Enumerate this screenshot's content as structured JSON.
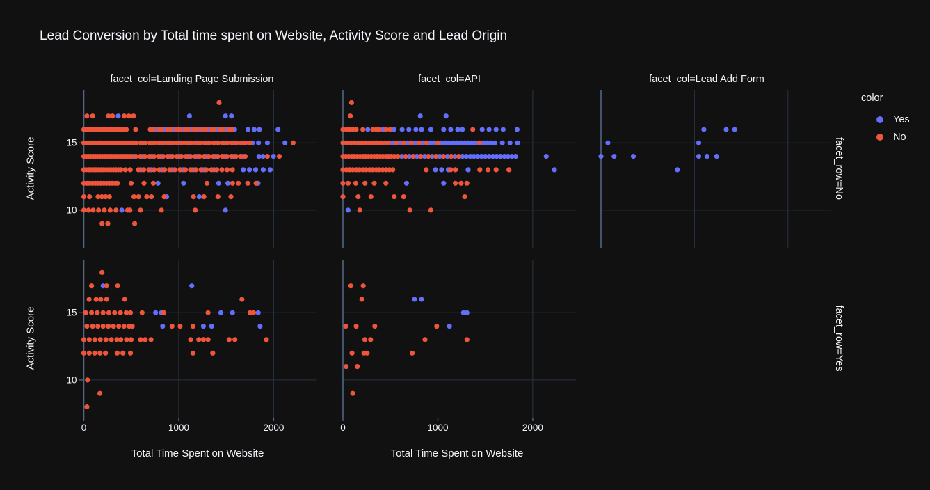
{
  "page": {
    "background": "#111111"
  },
  "title": "Lead Conversion by Total time spent on Website, Activity Score and Lead Origin",
  "legend": {
    "title": "color",
    "items": [
      {
        "label": "Yes",
        "color": "#636efa"
      },
      {
        "label": "No",
        "color": "#ef553b"
      }
    ]
  },
  "facet_col_labels": [
    "facet_col=Landing Page Submission",
    "facet_col=API",
    "facet_col=Lead Add Form"
  ],
  "facet_row_labels": [
    "facet_row=No",
    "facet_row=Yes"
  ],
  "axes": {
    "x_title": "Total Time Spent on Website",
    "y_title": "Activity Score",
    "x_tick_labels": [
      "0",
      "1000",
      "2000"
    ],
    "x_tick_values": [
      0,
      1000,
      2000
    ],
    "y_tick_labels": [
      "15",
      "10"
    ],
    "y_tick_values": [
      15,
      10
    ],
    "x_range": [
      0,
      2455
    ],
    "y_range": [
      7.2,
      18.95
    ],
    "grid": true,
    "grid_color": "#283442",
    "axis_line_color": "#506784",
    "text_color": "#f2f5fa"
  },
  "chart_data": {
    "type": "scatter",
    "title": "Lead Conversion by Total time spent on Website, Activity Score and Lead Origin",
    "xlabel": "Total Time Spent on Website",
    "ylabel": "Activity Score",
    "color_series": [
      "Yes",
      "No"
    ],
    "facets": [
      {
        "col": 0,
        "row": 0,
        "col_value": "Landing Page Submission",
        "row_value": "No",
        "no": {
          "18": [
            1425
          ],
          "17": [
            32,
            93,
            260,
            302,
            425,
            474,
            523
          ],
          "16": [
            0,
            28,
            56,
            84,
            112,
            140,
            168,
            196,
            224,
            252,
            280,
            308,
            336,
            364,
            392,
            420,
            448,
            545,
            700,
            731,
            792,
            823,
            884,
            915,
            976,
            1007,
            1068,
            1099,
            1160,
            1191,
            1252,
            1283,
            1344,
            1375,
            1436,
            1467,
            1528,
            1559
          ],
          "15": [
            0,
            24,
            48,
            72,
            96,
            120,
            144,
            168,
            192,
            216,
            240,
            264,
            288,
            312,
            336,
            360,
            384,
            408,
            432,
            456,
            480,
            504,
            552,
            600,
            648,
            696,
            744,
            792,
            840,
            888,
            936,
            984,
            1032,
            1080,
            1128,
            1176,
            1224,
            1272,
            1320,
            1368,
            1416,
            1464,
            1512,
            1560,
            1608,
            1656,
            1704,
            1752,
            2205
          ],
          "14": [
            0,
            24,
            48,
            72,
            96,
            120,
            144,
            168,
            192,
            216,
            240,
            264,
            288,
            312,
            336,
            360,
            384,
            408,
            432,
            456,
            480,
            500,
            548,
            596,
            644,
            692,
            740,
            788,
            836,
            884,
            932,
            980,
            1028,
            1076,
            1124,
            1172,
            1220,
            1268,
            1316,
            1364,
            1412,
            1460,
            1508,
            1556,
            1604,
            1652,
            1700,
            1934,
            2059
          ],
          "13": [
            0,
            26,
            52,
            78,
            104,
            130,
            156,
            182,
            208,
            234,
            260,
            286,
            312,
            338,
            364,
            390,
            437,
            489,
            575,
            630,
            685,
            740,
            795,
            850,
            905,
            960,
            1015,
            1070,
            1125,
            1180,
            1235,
            1290,
            1345,
            1400,
            1455,
            1510,
            1565
          ],
          "12": [
            0,
            30,
            60,
            90,
            120,
            150,
            180,
            210,
            240,
            270,
            300,
            330,
            355,
            498,
            634,
            732,
            1297,
            1567,
            1629,
            1727,
            1815
          ],
          "11": [
            0,
            60,
            150,
            190,
            230,
            270,
            528,
            577,
            663,
            712,
            847,
            1155,
            1265,
            1413,
            1550
          ],
          "10": [
            0,
            50,
            98,
            155,
            216,
            277,
            339,
            462,
            486,
            597,
            818,
            1174
          ],
          "9": [
            192,
            253,
            536
          ]
        },
        "yes": {
          "17": [
            363,
            1113,
            1493,
            1555
          ],
          "16": [
            761,
            853,
            945,
            1037,
            1129,
            1221,
            1313,
            1405,
            1497,
            1589,
            1730,
            1795,
            1850,
            2046
          ],
          "15": [
            528,
            624,
            720,
            816,
            912,
            1008,
            1104,
            1200,
            1296,
            1392,
            1488,
            1584,
            1680,
            1776,
            1840,
            1934,
            2119
          ],
          "14": [
            524,
            620,
            716,
            812,
            908,
            1004,
            1100,
            1196,
            1292,
            1388,
            1484,
            1580,
            1676,
            1845,
            1888,
            1998
          ],
          "13": [
            602,
            712,
            822,
            932,
            1042,
            1152,
            1262,
            1372,
            1680,
            1745,
            1810,
            1890,
            1963
          ],
          "12": [
            781,
            1051,
            1420,
            1518,
            1835
          ],
          "11": [
            872,
            1216
          ],
          "10": [
            400,
            1493
          ]
        }
      },
      {
        "col": 1,
        "row": 0,
        "col_value": "API",
        "row_value": "No",
        "no": {
          "18": [
            91
          ],
          "17": [
            78
          ],
          "16": [
            0,
            35,
            70,
            105,
            140,
            210,
            315,
            350,
            385,
            455,
            496,
            1368
          ],
          "15": [
            0,
            40,
            80,
            120,
            160,
            200,
            240,
            280,
            320,
            360,
            398,
            440,
            480,
            560,
            640,
            720,
            800,
            880,
            1000,
            1440
          ],
          "14": [
            0,
            30,
            60,
            90,
            120,
            150,
            180,
            210,
            240,
            270,
            300,
            330,
            360,
            390,
            420,
            450,
            480,
            510,
            540,
            580,
            660,
            740,
            820,
            900,
            980,
            1060,
            1140,
            1220
          ],
          "13": [
            0,
            35,
            70,
            105,
            140,
            175,
            210,
            245,
            280,
            315,
            350,
            385,
            420,
            455,
            490,
            525,
            877,
            1135,
            1184,
            1442,
            1528,
            1614,
            1749
          ],
          "12": [
            0,
            55,
            135,
            232,
            330,
            453,
            1184,
            1245,
            1306
          ],
          "11": [
            0,
            160,
            295,
            540,
            640,
            1283
          ],
          "10": [
            177,
            705,
            926
          ]
        },
        "yes": {
          "17": [
            815,
            1086
          ],
          "16": [
            262,
            422,
            538,
            624,
            695,
            769,
            828,
            926,
            1061,
            1135,
            1209,
            1258,
            1467,
            1540,
            1614,
            1688,
            1835
          ],
          "15": [
            520,
            600,
            680,
            760,
            840,
            920,
            960,
            1040,
            1080,
            1120,
            1160,
            1200,
            1240,
            1280,
            1320,
            1360,
            1400,
            1480,
            1520,
            1560,
            1600,
            1680,
            1760,
            1840
          ],
          "14": [
            620,
            700,
            780,
            860,
            940,
            1020,
            1100,
            1180,
            1260,
            1300,
            1340,
            1380,
            1420,
            1460,
            1500,
            1540,
            1580,
            1620,
            1660,
            1700,
            1740,
            1780,
            1820,
            2142
          ],
          "13": [
            975,
            1040,
            1110,
            1319,
            2228
          ],
          "12": [
            670,
            1061
          ],
          "10": [
            54
          ]
        }
      },
      {
        "col": 2,
        "row": 0,
        "col_value": "Lead Add Form",
        "row_value": "No",
        "no": {},
        "yes": {
          "16": [
            1100,
            1339,
            1430
          ],
          "15": [
            74,
            1045
          ],
          "14": [
            0,
            140,
            346,
            1045,
            1134,
            1237
          ],
          "13": [
            817
          ]
        }
      },
      {
        "col": 0,
        "row": 1,
        "col_value": "Landing Page Submission",
        "row_value": "Yes",
        "no": {
          "18": [
            192
          ],
          "17": [
            81,
            240,
            356
          ],
          "16": [
            56,
            130,
            179,
            240,
            430,
            1666
          ],
          "15": [
            19,
            81,
            142,
            203,
            264,
            325,
            386,
            447,
            491,
            614,
            842,
            1309,
            1751,
            1788
          ],
          "14": [
            32,
            93,
            148,
            203,
            258,
            313,
            368,
            423,
            478,
            511,
            929,
            1014,
            1150
          ],
          "13": [
            0,
            58,
            116,
            174,
            232,
            290,
            348,
            390,
            450,
            498,
            597,
            646,
            708,
            1125,
            1211,
            1260,
            1309,
            1530,
            1592,
            1924
          ],
          "12": [
            0,
            57,
            114,
            171,
            228,
            351,
            412,
            491,
            1150,
            1358
          ],
          "10": [
            39
          ],
          "9": [
            169
          ],
          "8": [
            32
          ]
        },
        "yes": {
          "17": [
            204,
            1137
          ],
          "15": [
            756,
            818,
            1444,
            1567,
            1837
          ],
          "14": [
            830,
            1260,
            1346,
            1857
          ]
        }
      },
      {
        "col": 1,
        "row": 1,
        "col_value": "API",
        "row_value": "Yes",
        "no": {
          "17": [
            83,
            214
          ],
          "16": [
            199
          ],
          "14": [
            29,
            140,
            336,
            988
          ],
          "13": [
            231,
            292,
            865,
            1307
          ],
          "12": [
            96,
            221,
            255,
            730
          ],
          "11": [
            34,
            152
          ],
          "9": [
            103
          ]
        },
        "yes": {
          "16": [
            754,
            828
          ],
          "15": [
            1270,
            1307
          ],
          "14": [
            1123
          ]
        }
      }
    ]
  }
}
